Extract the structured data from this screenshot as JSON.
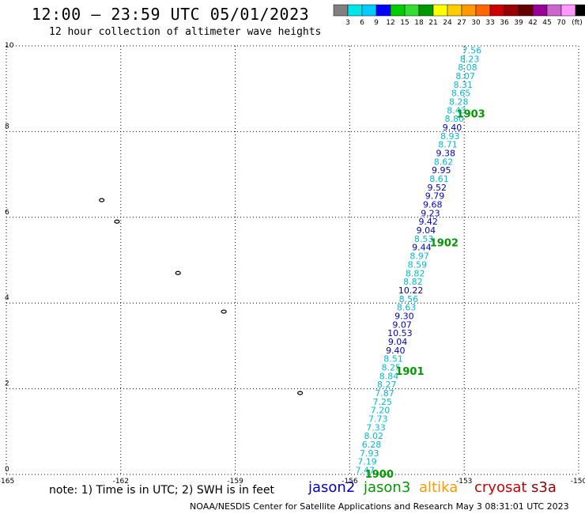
{
  "header": {
    "title": "12:00 – 23:59 UTC 05/01/2023",
    "subtitle": "12 hour collection of altimeter wave heights"
  },
  "footer": {
    "note": "note: 1) Time is in UTC; 2) SWH is in feet",
    "credit": "NOAA/NESDIS Center for Satellite Applications and Research    May  3 08:31:01 UTC 2023"
  },
  "satellites": [
    {
      "name": "jason2",
      "color": "#0000cc"
    },
    {
      "name": "jason3",
      "color": "#009900"
    },
    {
      "name": "altika",
      "color": "#ff9900"
    },
    {
      "name": "cryosat",
      "color": "#cc0000"
    },
    {
      "name": "s3a",
      "color": "#990000"
    }
  ],
  "colorbar": {
    "labels": [
      "3",
      "6",
      "9",
      "12",
      "15",
      "18",
      "21",
      "24",
      "27",
      "30",
      "33",
      "36",
      "39",
      "42",
      "45",
      "70"
    ],
    "unit": "(ft)",
    "colors": [
      "#808080",
      "#00e6e6",
      "#00ccff",
      "#0000ff",
      "#00cc00",
      "#33dd33",
      "#009900",
      "#ffff00",
      "#ffcc00",
      "#ff9900",
      "#ff6600",
      "#cc0000",
      "#990000",
      "#660000",
      "#990099",
      "#cc66cc",
      "#ff99ff",
      "#000000"
    ]
  },
  "chart_data": {
    "type": "scatter",
    "title": "12:00 – 23:59 UTC 05/01/2023",
    "subtitle": "12 hour collection of altimeter wave heights",
    "xlim": [
      -165,
      -150
    ],
    "ylim": [
      0,
      10
    ],
    "x_ticks": [
      "-165",
      "-162",
      "-159",
      "-156",
      "-153",
      "-150"
    ],
    "y_ticks": [
      "0",
      "2",
      "4",
      "6",
      "8",
      "10"
    ],
    "grid": true,
    "track_start": {
      "lon": -155.6,
      "lat": 0.1
    },
    "track_end": {
      "lon": -152.8,
      "lat": 9.9
    },
    "swh_values": [
      "7.47",
      "7.19",
      "7.93",
      "6.28",
      "8.02",
      "7.33",
      "7.73",
      "7.20",
      "7.25",
      "7.87",
      "8.27",
      "8.84",
      "8.25",
      "8.51",
      "9.40",
      "9.04",
      "10.53",
      "9.07",
      "9.30",
      "8.63",
      "8.56",
      "10.22",
      "8.82",
      "8.82",
      "8.59",
      "8.97",
      "9.44",
      "8.53",
      "9.04",
      "9.42",
      "9.23",
      "9.68",
      "9.79",
      "9.52",
      "8.61",
      "9.95",
      "8.62",
      "9.38",
      "8.71",
      "8.93",
      "9.40",
      "8.80",
      "8.43",
      "8.28",
      "8.65",
      "8.31",
      "8.07",
      "8.08",
      "8.23",
      "7.56"
    ],
    "swh_colors": [
      "#00bbdd",
      "#00bbdd",
      "#00bbdd",
      "#00bbdd",
      "#00bbdd",
      "#00bbdd",
      "#00bbdd",
      "#00bbdd",
      "#00bbdd",
      "#00bbdd",
      "#00bbdd",
      "#00bbdd",
      "#00bbdd",
      "#00bbdd",
      "#0000cc",
      "#0000cc",
      "#0000cc",
      "#0000cc",
      "#0000cc",
      "#00bbdd",
      "#00bbdd",
      "#0000cc",
      "#00bbdd",
      "#00bbdd",
      "#00bbdd",
      "#00bbdd",
      "#0000cc",
      "#00bbdd",
      "#0000cc",
      "#0000cc",
      "#0000cc",
      "#0000cc",
      "#0000cc",
      "#0000cc",
      "#00bbdd",
      "#0000cc",
      "#00bbdd",
      "#0000cc",
      "#00bbdd",
      "#00bbdd",
      "#0000cc",
      "#00bbdd",
      "#00bbdd",
      "#00bbdd",
      "#00bbdd",
      "#00bbdd",
      "#00bbdd",
      "#00bbdd",
      "#00bbdd",
      "#00bbdd"
    ],
    "time_labels": [
      {
        "text": "1900",
        "lon": -155.6,
        "lat": 0.0
      },
      {
        "text": "1901",
        "lon": -154.8,
        "lat": 2.4
      },
      {
        "text": "1902",
        "lon": -153.9,
        "lat": 5.4
      },
      {
        "text": "1903",
        "lon": -153.2,
        "lat": 8.4
      }
    ],
    "time_label_color": "#009900",
    "islands": [
      {
        "name": "i1",
        "lon": -162.5,
        "lat": 6.4
      },
      {
        "name": "i2",
        "lon": -162.1,
        "lat": 5.9
      },
      {
        "name": "i3",
        "lon": -160.5,
        "lat": 4.7
      },
      {
        "name": "i4",
        "lon": -159.3,
        "lat": 3.8
      },
      {
        "name": "i5",
        "lon": -157.3,
        "lat": 1.9
      }
    ]
  }
}
